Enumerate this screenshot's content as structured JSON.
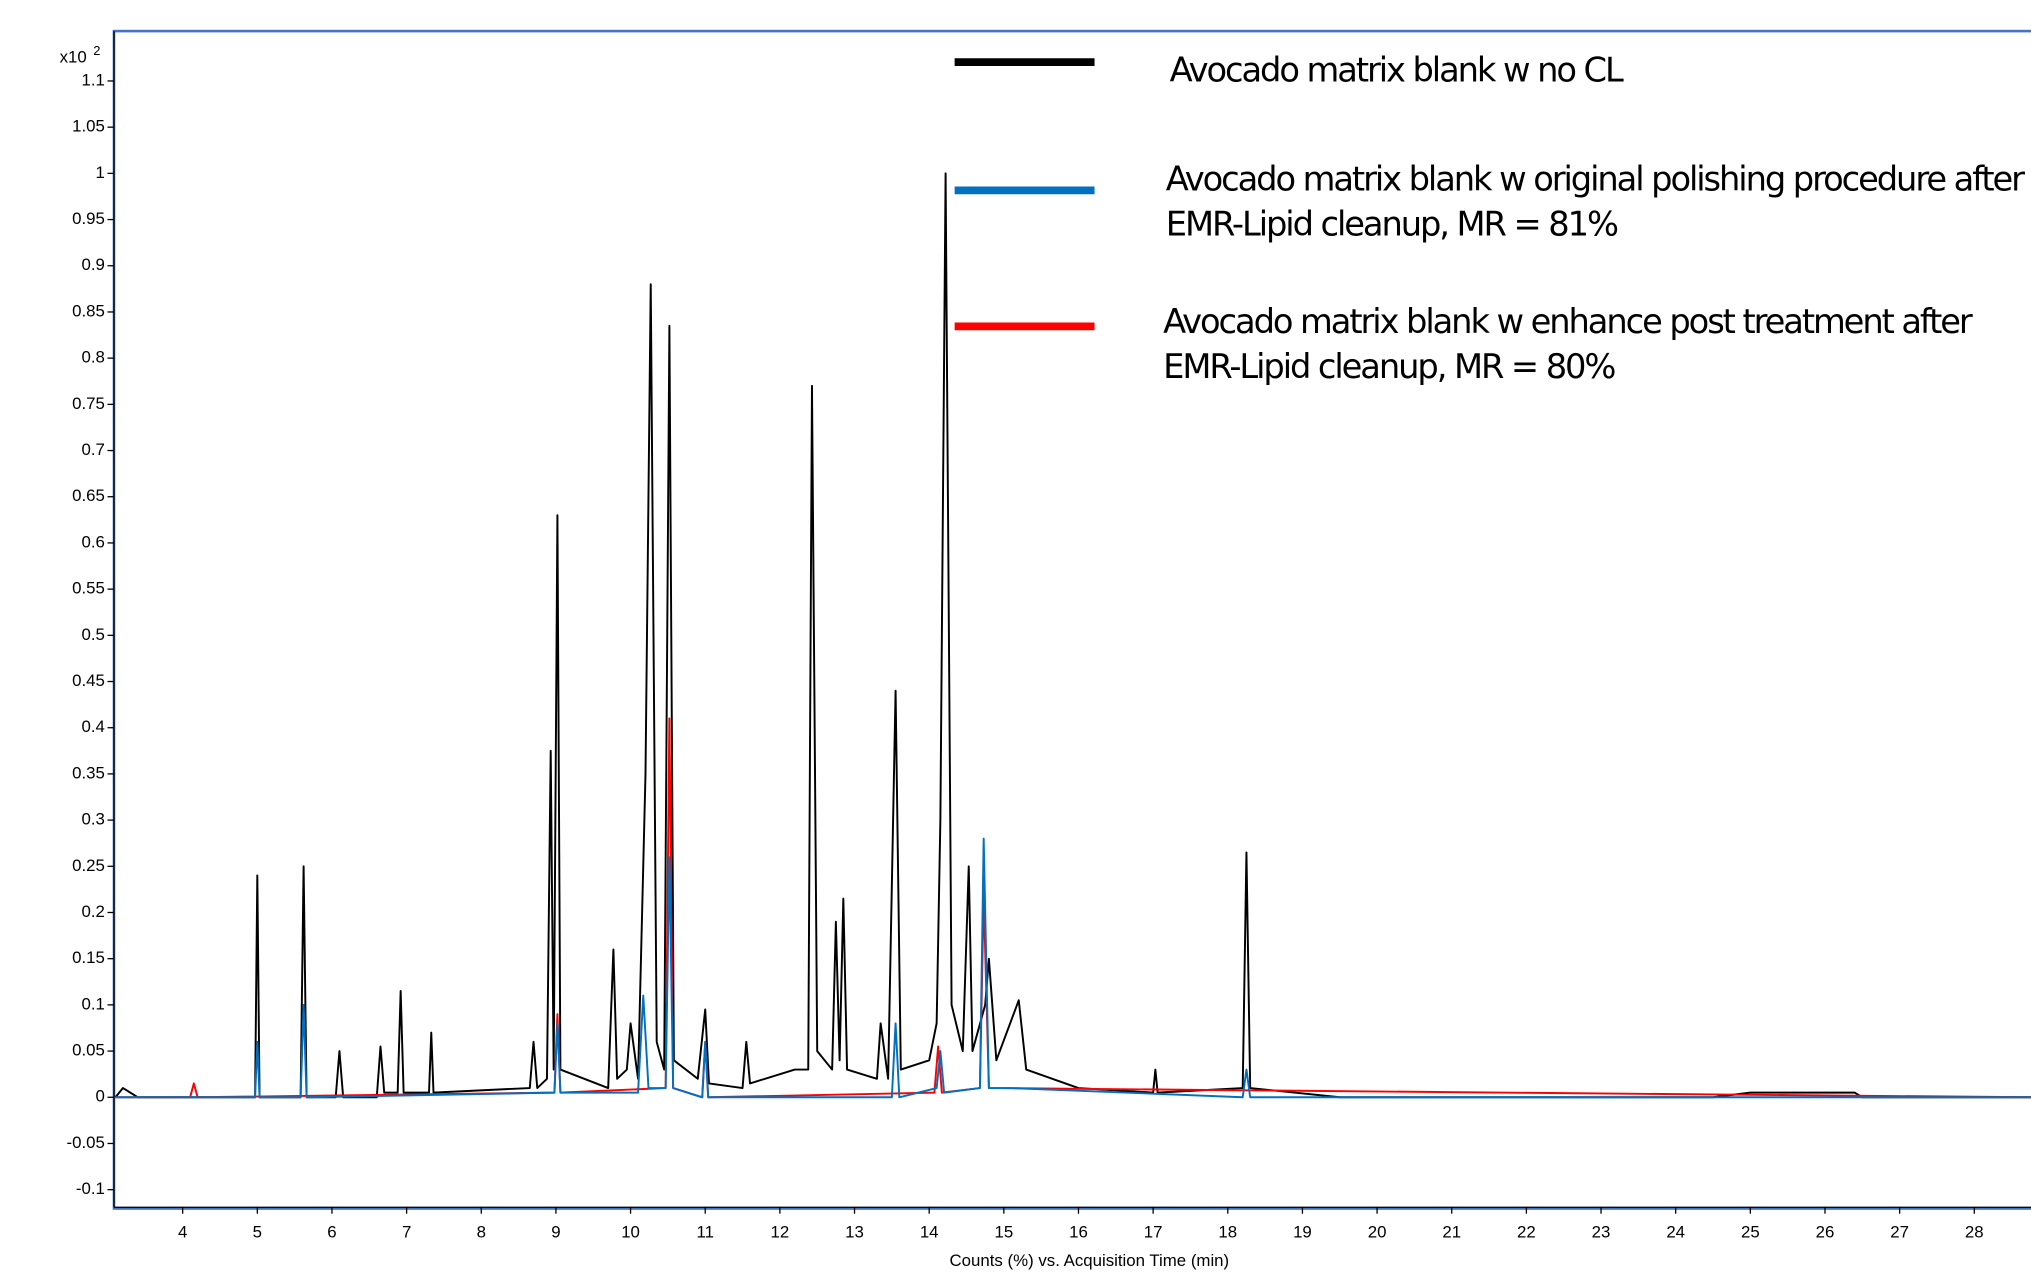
{
  "chart_data": {
    "type": "line",
    "x_axis_label": "Counts (%) vs. Acquisition Time (min)",
    "y_axis_prefix": "x10",
    "y_axis_exponent": "2",
    "xlim": [
      3.08,
      28.76
    ],
    "ylim": [
      -0.119,
      1.154
    ],
    "xticks": [
      4,
      5,
      6,
      7,
      8,
      9,
      10,
      11,
      12,
      13,
      14,
      15,
      16,
      17,
      18,
      19,
      20,
      21,
      22,
      23,
      24,
      25,
      26,
      27,
      28
    ],
    "yticks": [
      -0.1,
      -0.05,
      0,
      0.05,
      0.1,
      0.15,
      0.2,
      0.25,
      0.3,
      0.35,
      0.4,
      0.45,
      0.5,
      0.55,
      0.6,
      0.65,
      0.7,
      0.75,
      0.8,
      0.85,
      0.9,
      0.95,
      1,
      1.05,
      1.1
    ],
    "grid": false,
    "series": [
      {
        "name": "Avocado matrix blank w no CL",
        "color": "#000000",
        "x": [
          3.1,
          3.2,
          3.4,
          4.9,
          4.97,
          5.0,
          5.03,
          5.58,
          5.62,
          5.66,
          6.05,
          6.1,
          6.15,
          6.6,
          6.65,
          6.7,
          6.88,
          6.92,
          6.96,
          7.3,
          7.33,
          7.36,
          8.65,
          8.7,
          8.75,
          8.88,
          8.93,
          8.97,
          9.02,
          9.06,
          9.7,
          9.77,
          9.82,
          9.95,
          10.0,
          10.1,
          10.2,
          10.27,
          10.35,
          10.45,
          10.52,
          10.58,
          10.9,
          11.0,
          11.05,
          11.5,
          11.55,
          11.6,
          12.2,
          12.38,
          12.43,
          12.5,
          12.7,
          12.75,
          12.8,
          12.85,
          12.9,
          13.3,
          13.35,
          13.45,
          13.55,
          13.62,
          14.0,
          14.1,
          14.15,
          14.22,
          14.3,
          14.45,
          14.53,
          14.58,
          14.75,
          14.8,
          14.9,
          15.2,
          15.3,
          16.0,
          17.0,
          17.03,
          17.06,
          18.2,
          18.25,
          18.3,
          19.5,
          24.5,
          25.0,
          26.4,
          26.5,
          28.76
        ],
        "values": [
          0,
          0.01,
          0,
          0,
          0,
          0.24,
          0,
          0,
          0.25,
          0,
          0,
          0.05,
          0,
          0,
          0.055,
          0.005,
          0.005,
          0.115,
          0.005,
          0.005,
          0.07,
          0.005,
          0.01,
          0.06,
          0.01,
          0.02,
          0.375,
          0.03,
          0.63,
          0.03,
          0.01,
          0.16,
          0.02,
          0.03,
          0.08,
          0.02,
          0.35,
          0.88,
          0.06,
          0.03,
          0.835,
          0.04,
          0.02,
          0.095,
          0.015,
          0.01,
          0.06,
          0.015,
          0.03,
          0.03,
          0.77,
          0.05,
          0.03,
          0.19,
          0.04,
          0.215,
          0.03,
          0.02,
          0.08,
          0.02,
          0.44,
          0.03,
          0.04,
          0.08,
          0.3,
          1,
          0.1,
          0.05,
          0.25,
          0.05,
          0.1,
          0.15,
          0.04,
          0.105,
          0.03,
          0.01,
          0.005,
          0.03,
          0.005,
          0.01,
          0.265,
          0.01,
          0,
          0,
          0.005,
          0.005,
          0,
          0
        ]
      },
      {
        "name": "Avocado matrix blank w original polishing procedure after EMR-Lipid cleanup, MR = 81%",
        "color": "#0070c0",
        "x": [
          3.1,
          4.97,
          5.0,
          5.03,
          5.58,
          5.62,
          5.66,
          8.98,
          9.02,
          9.06,
          10.1,
          10.17,
          10.24,
          10.47,
          10.52,
          10.57,
          10.96,
          11.0,
          11.04,
          13.5,
          13.55,
          13.6,
          14.1,
          14.15,
          14.2,
          14.68,
          14.73,
          14.8,
          15.1,
          18.2,
          18.25,
          18.3,
          28.76
        ],
        "values": [
          0,
          0,
          0.06,
          0,
          0,
          0.1,
          0,
          0.005,
          0.08,
          0.005,
          0.005,
          0.11,
          0.01,
          0.01,
          0.26,
          0.01,
          0,
          0.06,
          0,
          0,
          0.08,
          0,
          0.01,
          0.05,
          0.005,
          0.01,
          0.28,
          0.01,
          0.01,
          0,
          0.03,
          0,
          0
        ]
      },
      {
        "name": "Avocado matrix blank w enhance post treatment after EMR-Lipid cleanup, MR = 80%",
        "color": "#ff0000",
        "x": [
          3.1,
          4.1,
          4.15,
          4.2,
          8.98,
          9.02,
          9.06,
          10.47,
          10.52,
          10.57,
          10.96,
          11.0,
          11.04,
          14.07,
          14.12,
          14.17,
          14.68,
          14.73,
          14.8,
          28.76
        ],
        "values": [
          0,
          0,
          0.015,
          0,
          0.005,
          0.09,
          0.005,
          0.01,
          0.41,
          0.01,
          0,
          0.06,
          0,
          0.005,
          0.055,
          0.005,
          0.01,
          0.22,
          0.01,
          0
        ]
      }
    ]
  }
}
